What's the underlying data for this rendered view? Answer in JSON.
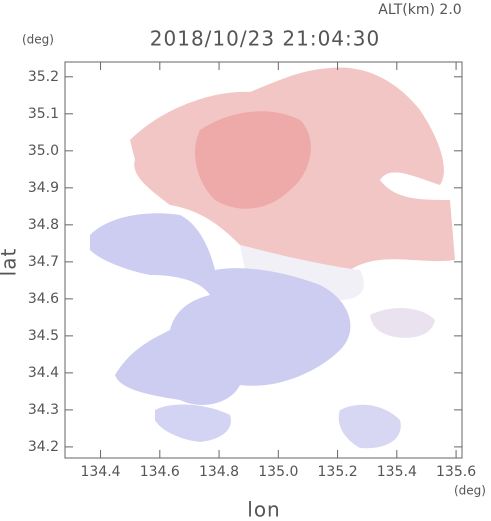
{
  "chart_data": {
    "type": "map",
    "title": "2018/10/23 21:04:30",
    "subtitle": "ALT(km) 2.0",
    "x_label": "lon",
    "y_label": "lat",
    "x_unit": "(deg)",
    "y_unit": "(deg)",
    "xlim": [
      134.28,
      135.62
    ],
    "ylim": [
      34.17,
      35.24
    ],
    "xticks": [
      134.4,
      134.6,
      134.8,
      {
        "value": 135,
        "label": "135.0"
      },
      135.2,
      135.4,
      135.6
    ],
    "yticks": [
      34.2,
      34.3,
      34.4,
      34.5,
      34.6,
      34.7,
      34.8,
      34.9,
      {
        "value": 35,
        "label": "35.0"
      },
      35.1,
      35.2
    ]
  }
}
